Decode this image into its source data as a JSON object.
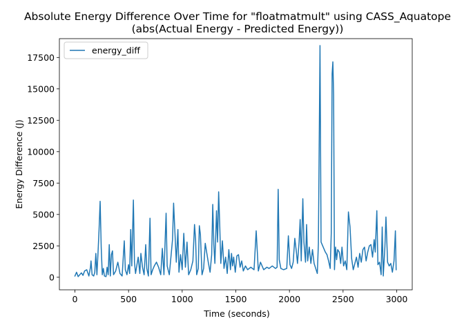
{
  "chart_data": {
    "type": "line",
    "title_line1": "Absolute Energy Difference Over Time for \"floatmatmult\" using CASS_Aquatope",
    "title_line2": "(abs(Actual Energy - Predicted Energy))",
    "xlabel": "Time (seconds)",
    "ylabel": "Energy Difference (J)",
    "xlim": [
      -145,
      3145
    ],
    "ylim": [
      -1000,
      19000
    ],
    "xticks": [
      0,
      500,
      1000,
      1500,
      2000,
      2500,
      3000
    ],
    "yticks": [
      0,
      2500,
      5000,
      7500,
      10000,
      12500,
      15000,
      17500
    ],
    "grid": false,
    "legend_position": "upper left",
    "series": [
      {
        "name": "energy_diff",
        "color": "#1f77b4",
        "points": [
          [
            0,
            100
          ],
          [
            15,
            400
          ],
          [
            30,
            50
          ],
          [
            45,
            200
          ],
          [
            60,
            350
          ],
          [
            75,
            150
          ],
          [
            90,
            500
          ],
          [
            110,
            600
          ],
          [
            130,
            100
          ],
          [
            145,
            800
          ],
          [
            150,
            1300
          ],
          [
            160,
            200
          ],
          [
            175,
            100
          ],
          [
            185,
            400
          ],
          [
            195,
            1900
          ],
          [
            205,
            200
          ],
          [
            215,
            1900
          ],
          [
            225,
            3800
          ],
          [
            235,
            6050
          ],
          [
            245,
            2400
          ],
          [
            255,
            200
          ],
          [
            265,
            700
          ],
          [
            275,
            100
          ],
          [
            290,
            50
          ],
          [
            300,
            800
          ],
          [
            310,
            200
          ],
          [
            320,
            2600
          ],
          [
            330,
            100
          ],
          [
            340,
            1800
          ],
          [
            350,
            2100
          ],
          [
            360,
            200
          ],
          [
            380,
            500
          ],
          [
            400,
            1200
          ],
          [
            420,
            300
          ],
          [
            440,
            100
          ],
          [
            460,
            2900
          ],
          [
            470,
            600
          ],
          [
            485,
            200
          ],
          [
            500,
            1000
          ],
          [
            510,
            300
          ],
          [
            520,
            3800
          ],
          [
            530,
            900
          ],
          [
            545,
            6150
          ],
          [
            555,
            1200
          ],
          [
            565,
            300
          ],
          [
            580,
            1100
          ],
          [
            590,
            1600
          ],
          [
            605,
            300
          ],
          [
            615,
            1900
          ],
          [
            630,
            800
          ],
          [
            645,
            200
          ],
          [
            660,
            2600
          ],
          [
            670,
            700
          ],
          [
            685,
            100
          ],
          [
            700,
            4700
          ],
          [
            710,
            200
          ],
          [
            725,
            600
          ],
          [
            740,
            900
          ],
          [
            760,
            1200
          ],
          [
            780,
            800
          ],
          [
            800,
            200
          ],
          [
            815,
            2300
          ],
          [
            830,
            200
          ],
          [
            850,
            5100
          ],
          [
            860,
            900
          ],
          [
            880,
            200
          ],
          [
            895,
            1600
          ],
          [
            910,
            3000
          ],
          [
            920,
            5900
          ],
          [
            930,
            4000
          ],
          [
            945,
            1200
          ],
          [
            960,
            3800
          ],
          [
            970,
            400
          ],
          [
            985,
            1800
          ],
          [
            1000,
            600
          ],
          [
            1015,
            3500
          ],
          [
            1030,
            800
          ],
          [
            1045,
            2800
          ],
          [
            1060,
            200
          ],
          [
            1080,
            600
          ],
          [
            1100,
            1300
          ],
          [
            1115,
            4200
          ],
          [
            1125,
            3000
          ],
          [
            1135,
            200
          ],
          [
            1150,
            700
          ],
          [
            1160,
            4100
          ],
          [
            1170,
            3400
          ],
          [
            1185,
            200
          ],
          [
            1200,
            700
          ],
          [
            1215,
            2700
          ],
          [
            1230,
            1900
          ],
          [
            1245,
            1100
          ],
          [
            1260,
            400
          ],
          [
            1275,
            1800
          ],
          [
            1285,
            5800
          ],
          [
            1295,
            2600
          ],
          [
            1305,
            1100
          ],
          [
            1320,
            5300
          ],
          [
            1330,
            2800
          ],
          [
            1340,
            6800
          ],
          [
            1350,
            4200
          ],
          [
            1360,
            1100
          ],
          [
            1375,
            2900
          ],
          [
            1390,
            700
          ],
          [
            1405,
            1600
          ],
          [
            1420,
            300
          ],
          [
            1435,
            2200
          ],
          [
            1450,
            600
          ],
          [
            1460,
            1900
          ],
          [
            1470,
            900
          ],
          [
            1480,
            1600
          ],
          [
            1495,
            400
          ],
          [
            1510,
            1700
          ],
          [
            1525,
            1800
          ],
          [
            1540,
            800
          ],
          [
            1555,
            1300
          ],
          [
            1570,
            500
          ],
          [
            1590,
            900
          ],
          [
            1610,
            600
          ],
          [
            1640,
            800
          ],
          [
            1670,
            600
          ],
          [
            1690,
            3700
          ],
          [
            1710,
            500
          ],
          [
            1730,
            1200
          ],
          [
            1760,
            600
          ],
          [
            1790,
            800
          ],
          [
            1810,
            700
          ],
          [
            1840,
            900
          ],
          [
            1870,
            700
          ],
          [
            1885,
            800
          ],
          [
            1895,
            7000
          ],
          [
            1905,
            1400
          ],
          [
            1920,
            700
          ],
          [
            1945,
            600
          ],
          [
            1975,
            700
          ],
          [
            1990,
            3300
          ],
          [
            2005,
            1000
          ],
          [
            2020,
            700
          ],
          [
            2035,
            1200
          ],
          [
            2050,
            3100
          ],
          [
            2065,
            2000
          ],
          [
            2075,
            1100
          ],
          [
            2090,
            2800
          ],
          [
            2100,
            4600
          ],
          [
            2110,
            1300
          ],
          [
            2125,
            6250
          ],
          [
            2135,
            2800
          ],
          [
            2150,
            1200
          ],
          [
            2160,
            4200
          ],
          [
            2170,
            1300
          ],
          [
            2185,
            2400
          ],
          [
            2200,
            1100
          ],
          [
            2215,
            2200
          ],
          [
            2230,
            1100
          ],
          [
            2245,
            700
          ],
          [
            2260,
            300
          ],
          [
            2270,
            2700
          ],
          [
            2285,
            18450
          ],
          [
            2295,
            2800
          ],
          [
            2335,
            2000
          ],
          [
            2350,
            1800
          ],
          [
            2365,
            1300
          ],
          [
            2380,
            700
          ],
          [
            2390,
            3500
          ],
          [
            2398,
            16200
          ],
          [
            2405,
            17150
          ],
          [
            2412,
            14500
          ],
          [
            2420,
            600
          ],
          [
            2430,
            2400
          ],
          [
            2440,
            1400
          ],
          [
            2450,
            2200
          ],
          [
            2465,
            2000
          ],
          [
            2478,
            1100
          ],
          [
            2490,
            2400
          ],
          [
            2505,
            900
          ],
          [
            2520,
            1300
          ],
          [
            2535,
            600
          ],
          [
            2550,
            5200
          ],
          [
            2565,
            4000
          ],
          [
            2580,
            1500
          ],
          [
            2595,
            600
          ],
          [
            2610,
            1100
          ],
          [
            2625,
            1600
          ],
          [
            2640,
            800
          ],
          [
            2655,
            1900
          ],
          [
            2670,
            1200
          ],
          [
            2685,
            2200
          ],
          [
            2700,
            2400
          ],
          [
            2715,
            1300
          ],
          [
            2730,
            2000
          ],
          [
            2745,
            2500
          ],
          [
            2760,
            2600
          ],
          [
            2775,
            1600
          ],
          [
            2790,
            3000
          ],
          [
            2800,
            2000
          ],
          [
            2815,
            5300
          ],
          [
            2825,
            1000
          ],
          [
            2840,
            1200
          ],
          [
            2855,
            200
          ],
          [
            2865,
            4000
          ],
          [
            2875,
            100
          ],
          [
            2890,
            2400
          ],
          [
            2900,
            4800
          ],
          [
            2915,
            1200
          ],
          [
            2930,
            900
          ],
          [
            2945,
            1100
          ],
          [
            2960,
            400
          ],
          [
            2975,
            1300
          ],
          [
            2988,
            3700
          ],
          [
            2995,
            600
          ]
        ]
      }
    ]
  }
}
